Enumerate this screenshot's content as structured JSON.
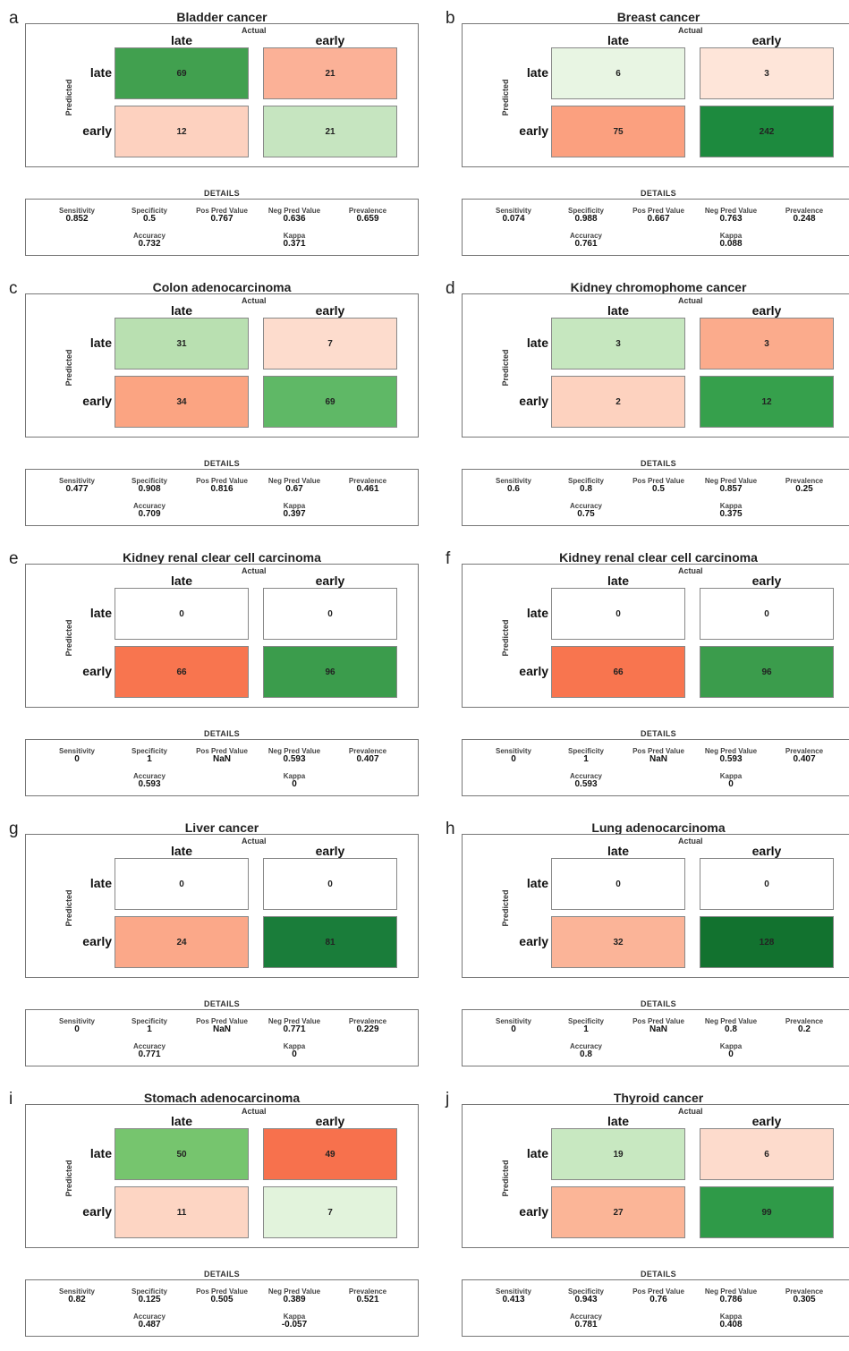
{
  "labels": {
    "actual": "Actual",
    "predicted": "Predicted",
    "late": "late",
    "early": "early",
    "details": "DETAILS",
    "sensitivity": "Sensitivity",
    "specificity": "Specificity",
    "ppv": "Pos Pred Value",
    "npv": "Neg Pred Value",
    "prevalence": "Prevalence",
    "accuracy": "Accuracy",
    "kappa": "Kappa"
  },
  "chart_data": [
    {
      "type": "heatmap",
      "letter": "a",
      "title": "Bladder cancer",
      "columns": [
        "late",
        "early"
      ],
      "rows": [
        "late",
        "early"
      ],
      "values": [
        [
          69,
          21
        ],
        [
          12,
          21
        ]
      ],
      "colors": [
        [
          "#41a04f",
          "#fbb197"
        ],
        [
          "#fdd1bf",
          "#c6e5c0"
        ]
      ],
      "details": {
        "sensitivity": "0.852",
        "specificity": "0.5",
        "ppv": "0.767",
        "npv": "0.636",
        "prevalence": "0.659",
        "accuracy": "0.732",
        "kappa": "0.371"
      }
    },
    {
      "type": "heatmap",
      "letter": "b",
      "title": "Breast cancer",
      "columns": [
        "late",
        "early"
      ],
      "rows": [
        "late",
        "early"
      ],
      "values": [
        [
          6,
          3
        ],
        [
          75,
          242
        ]
      ],
      "colors": [
        [
          "#e8f5e3",
          "#fee5d9"
        ],
        [
          "#fba07f",
          "#1d8a3e"
        ]
      ],
      "details": {
        "sensitivity": "0.074",
        "specificity": "0.988",
        "ppv": "0.667",
        "npv": "0.763",
        "prevalence": "0.248",
        "accuracy": "0.761",
        "kappa": "0.088"
      }
    },
    {
      "type": "heatmap",
      "letter": "c",
      "title": "Colon adenocarcinoma",
      "columns": [
        "late",
        "early"
      ],
      "rows": [
        "late",
        "early"
      ],
      "values": [
        [
          31,
          7
        ],
        [
          34,
          69
        ]
      ],
      "colors": [
        [
          "#b9e0b1",
          "#fddccd"
        ],
        [
          "#fba482",
          "#5fb866"
        ]
      ],
      "details": {
        "sensitivity": "0.477",
        "specificity": "0.908",
        "ppv": "0.816",
        "npv": "0.67",
        "prevalence": "0.461",
        "accuracy": "0.709",
        "kappa": "0.397"
      }
    },
    {
      "type": "heatmap",
      "letter": "d",
      "title": "Kidney chromophome cancer",
      "columns": [
        "late",
        "early"
      ],
      "rows": [
        "late",
        "early"
      ],
      "values": [
        [
          3,
          3
        ],
        [
          2,
          12
        ]
      ],
      "colors": [
        [
          "#c6e7bf",
          "#fbab8c"
        ],
        [
          "#fdd2bf",
          "#36a04c"
        ]
      ],
      "details": {
        "sensitivity": "0.6",
        "specificity": "0.8",
        "ppv": "0.5",
        "npv": "0.857",
        "prevalence": "0.25",
        "accuracy": "0.75",
        "kappa": "0.375"
      }
    },
    {
      "type": "heatmap",
      "letter": "e",
      "title": "Kidney renal clear cell carcinoma",
      "columns": [
        "late",
        "early"
      ],
      "rows": [
        "late",
        "early"
      ],
      "values": [
        [
          0,
          0
        ],
        [
          66,
          96
        ]
      ],
      "colors": [
        [
          "#ffffff",
          "#ffffff"
        ],
        [
          "#f8754f",
          "#3b9c4c"
        ]
      ],
      "details": {
        "sensitivity": "0",
        "specificity": "1",
        "ppv": "NaN",
        "npv": "0.593",
        "prevalence": "0.407",
        "accuracy": "0.593",
        "kappa": "0"
      }
    },
    {
      "type": "heatmap",
      "letter": "f",
      "title": "Kidney renal clear cell carcinoma",
      "columns": [
        "late",
        "early"
      ],
      "rows": [
        "late",
        "early"
      ],
      "values": [
        [
          0,
          0
        ],
        [
          66,
          96
        ]
      ],
      "colors": [
        [
          "#ffffff",
          "#ffffff"
        ],
        [
          "#f8754f",
          "#3b9c4c"
        ]
      ],
      "details": {
        "sensitivity": "0",
        "specificity": "1",
        "ppv": "NaN",
        "npv": "0.593",
        "prevalence": "0.407",
        "accuracy": "0.593",
        "kappa": "0"
      }
    },
    {
      "type": "heatmap",
      "letter": "g",
      "title": "Liver cancer",
      "columns": [
        "late",
        "early"
      ],
      "rows": [
        "late",
        "early"
      ],
      "values": [
        [
          0,
          0
        ],
        [
          24,
          81
        ]
      ],
      "colors": [
        [
          "#ffffff",
          "#ffffff"
        ],
        [
          "#fba889",
          "#1a7d3a"
        ]
      ],
      "details": {
        "sensitivity": "0",
        "specificity": "1",
        "ppv": "NaN",
        "npv": "0.771",
        "prevalence": "0.229",
        "accuracy": "0.771",
        "kappa": "0"
      }
    },
    {
      "type": "heatmap",
      "letter": "h",
      "title": "Lung adenocarcinoma",
      "columns": [
        "late",
        "early"
      ],
      "rows": [
        "late",
        "early"
      ],
      "values": [
        [
          0,
          0
        ],
        [
          32,
          128
        ]
      ],
      "colors": [
        [
          "#ffffff",
          "#ffffff"
        ],
        [
          "#fbb498",
          "#12722f"
        ]
      ],
      "details": {
        "sensitivity": "0",
        "specificity": "1",
        "ppv": "NaN",
        "npv": "0.8",
        "prevalence": "0.2",
        "accuracy": "0.8",
        "kappa": "0"
      }
    },
    {
      "type": "heatmap",
      "letter": "i",
      "title": "Stomach adenocarcinoma",
      "columns": [
        "late",
        "early"
      ],
      "rows": [
        "late",
        "early"
      ],
      "values": [
        [
          50,
          49
        ],
        [
          11,
          7
        ]
      ],
      "colors": [
        [
          "#76c56e",
          "#f7714d"
        ],
        [
          "#fdd5c3",
          "#e2f3dc"
        ]
      ],
      "details": {
        "sensitivity": "0.82",
        "specificity": "0.125",
        "ppv": "0.505",
        "npv": "0.389",
        "prevalence": "0.521",
        "accuracy": "0.487",
        "kappa": "-0.057"
      }
    },
    {
      "type": "heatmap",
      "letter": "j",
      "title": "Thyroid cancer",
      "columns": [
        "late",
        "early"
      ],
      "rows": [
        "late",
        "early"
      ],
      "values": [
        [
          19,
          6
        ],
        [
          27,
          99
        ]
      ],
      "colors": [
        [
          "#c8e8c1",
          "#fddbcc"
        ],
        [
          "#fbb597",
          "#2f9a48"
        ]
      ],
      "details": {
        "sensitivity": "0.413",
        "specificity": "0.943",
        "ppv": "0.76",
        "npv": "0.786",
        "prevalence": "0.305",
        "accuracy": "0.781",
        "kappa": "0.408"
      }
    }
  ]
}
